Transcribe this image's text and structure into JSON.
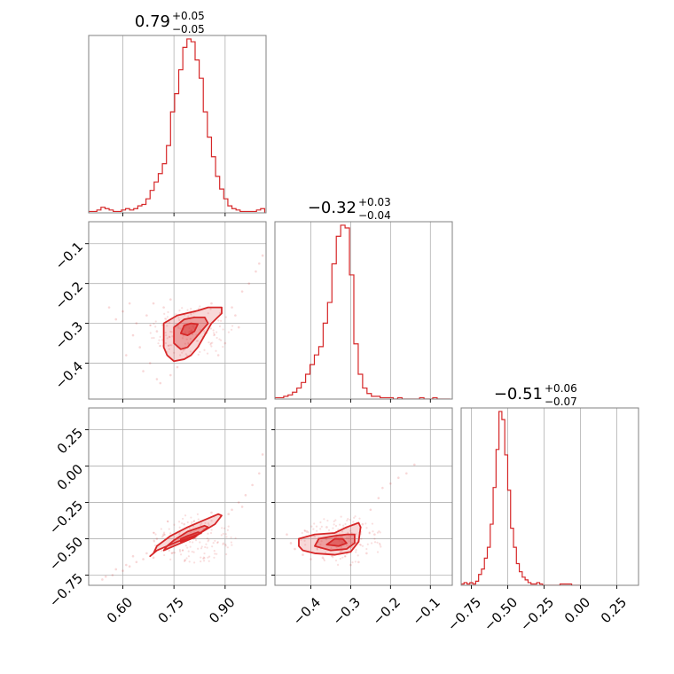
{
  "chart_data": {
    "type": "corner",
    "color": "#d62728",
    "grid": true,
    "panels": [
      {
        "name": "hist-p0",
        "kind": "hist",
        "row": 0,
        "col": 0,
        "title": {
          "value": "0.79",
          "plus": "+0.05",
          "minus": "−0.05"
        },
        "xlim": [
          0.5,
          1.02
        ],
        "x_ticks": [
          0.6,
          0.75,
          0.9
        ],
        "x_tick_labels": [],
        "bins": [
          0.5,
          0.512,
          0.524,
          0.536,
          0.548,
          0.56,
          0.572,
          0.584,
          0.596,
          0.608,
          0.62,
          0.632,
          0.644,
          0.656,
          0.668,
          0.68,
          0.692,
          0.704,
          0.716,
          0.728,
          0.74,
          0.752,
          0.764,
          0.776,
          0.788,
          0.8,
          0.812,
          0.824,
          0.836,
          0.848,
          0.86,
          0.872,
          0.884,
          0.896,
          0.908,
          0.92,
          0.932,
          0.944,
          0.956,
          0.968,
          0.98,
          0.992,
          1.004,
          1.016
        ],
        "counts": [
          1,
          1,
          2,
          4,
          3,
          2,
          1,
          1,
          2,
          3,
          2,
          3,
          5,
          6,
          10,
          16,
          22,
          28,
          35,
          48,
          72,
          85,
          102,
          118,
          124,
          122,
          109,
          96,
          72,
          54,
          40,
          26,
          17,
          10,
          5,
          3,
          2,
          1,
          1,
          1,
          1,
          2,
          3
        ]
      },
      {
        "name": "scatter-p1-p0",
        "kind": "2d",
        "row": 1,
        "col": 0,
        "xlim": [
          0.5,
          1.02
        ],
        "ylim": [
          -0.49,
          -0.045
        ],
        "x_ticks": [
          0.6,
          0.75,
          0.9
        ],
        "y_ticks": [
          -0.1,
          -0.2,
          -0.3,
          -0.4
        ],
        "x_tick_labels": [],
        "y_tick_labels": [
          "−0.1",
          "−0.2",
          "−0.3",
          "−0.4"
        ],
        "center": [
          0.8,
          -0.32
        ],
        "contours": [
          {
            "level": "outer",
            "points": [
              [
                0.72,
                -0.36
              ],
              [
                0.72,
                -0.3
              ],
              [
                0.76,
                -0.28
              ],
              [
                0.82,
                -0.268
              ],
              [
                0.85,
                -0.26
              ],
              [
                0.89,
                -0.26
              ],
              [
                0.89,
                -0.275
              ],
              [
                0.86,
                -0.3
              ],
              [
                0.84,
                -0.33
              ],
              [
                0.82,
                -0.36
              ],
              [
                0.8,
                -0.38
              ],
              [
                0.78,
                -0.39
              ],
              [
                0.75,
                -0.395
              ],
              [
                0.73,
                -0.38
              ]
            ]
          },
          {
            "level": "mid",
            "points": [
              [
                0.75,
                -0.35
              ],
              [
                0.75,
                -0.31
              ],
              [
                0.78,
                -0.29
              ],
              [
                0.81,
                -0.285
              ],
              [
                0.84,
                -0.285
              ],
              [
                0.85,
                -0.3
              ],
              [
                0.82,
                -0.33
              ],
              [
                0.79,
                -0.36
              ],
              [
                0.77,
                -0.365
              ]
            ]
          },
          {
            "level": "inner",
            "points": [
              [
                0.77,
                -0.325
              ],
              [
                0.78,
                -0.305
              ],
              [
                0.8,
                -0.3
              ],
              [
                0.82,
                -0.302
              ],
              [
                0.81,
                -0.32
              ],
              [
                0.79,
                -0.33
              ]
            ]
          }
        ],
        "scatter": [
          [
            0.62,
            -0.25
          ],
          [
            0.6,
            -0.27
          ],
          [
            0.56,
            -0.26
          ],
          [
            0.58,
            -0.29
          ],
          [
            0.64,
            -0.3
          ],
          [
            0.67,
            -0.28
          ],
          [
            0.65,
            -0.36
          ],
          [
            0.68,
            -0.4
          ],
          [
            0.66,
            -0.42
          ],
          [
            0.7,
            -0.44
          ],
          [
            0.69,
            -0.25
          ],
          [
            0.71,
            -0.45
          ],
          [
            0.74,
            -0.43
          ],
          [
            0.76,
            -0.41
          ],
          [
            0.92,
            -0.26
          ],
          [
            0.95,
            -0.22
          ],
          [
            0.97,
            -0.2
          ],
          [
            0.99,
            -0.17
          ],
          [
            1.0,
            -0.15
          ],
          [
            1.01,
            -0.13
          ],
          [
            0.94,
            -0.31
          ],
          [
            0.9,
            -0.35
          ],
          [
            0.88,
            -0.38
          ],
          [
            0.63,
            -0.33
          ],
          [
            0.61,
            -0.38
          ],
          [
            0.72,
            -0.26
          ],
          [
            0.74,
            -0.24
          ],
          [
            0.7,
            -0.32
          ],
          [
            0.86,
            -0.25
          ],
          [
            0.93,
            -0.28
          ]
        ]
      },
      {
        "name": "hist-p1",
        "kind": "hist",
        "row": 1,
        "col": 1,
        "title": {
          "value": "−0.32",
          "plus": "+0.03",
          "minus": "−0.04"
        },
        "xlim": [
          -0.49,
          -0.045
        ],
        "x_ticks": [
          -0.4,
          -0.3,
          -0.2,
          -0.1
        ],
        "x_tick_labels": [],
        "bins": [
          -0.49,
          -0.479,
          -0.468,
          -0.457,
          -0.446,
          -0.435,
          -0.424,
          -0.413,
          -0.402,
          -0.391,
          -0.38,
          -0.369,
          -0.358,
          -0.347,
          -0.336,
          -0.325,
          -0.314,
          -0.303,
          -0.292,
          -0.281,
          -0.27,
          -0.259,
          -0.248,
          -0.237,
          -0.226,
          -0.215,
          -0.204,
          -0.193,
          -0.182,
          -0.171,
          -0.16,
          -0.149,
          -0.138,
          -0.127,
          -0.116,
          -0.105,
          -0.094,
          -0.083,
          -0.072,
          -0.061,
          -0.05
        ],
        "counts": [
          1,
          1,
          2,
          3,
          5,
          8,
          12,
          18,
          25,
          32,
          38,
          55,
          70,
          98,
          118,
          126,
          124,
          90,
          40,
          18,
          8,
          4,
          2,
          2,
          1,
          1,
          1,
          0,
          1,
          0,
          0,
          0,
          0,
          1,
          0,
          0,
          1,
          0,
          0,
          0
        ]
      },
      {
        "name": "scatter-p2-p0",
        "kind": "2d",
        "row": 2,
        "col": 0,
        "xlim": [
          0.5,
          1.02
        ],
        "ylim": [
          -0.82,
          0.4
        ],
        "x_ticks": [
          0.6,
          0.75,
          0.9
        ],
        "y_ticks": [
          0.25,
          0.0,
          -0.25,
          -0.5,
          -0.75
        ],
        "x_tick_labels": [
          "0.60",
          "0.75",
          "0.90"
        ],
        "y_tick_labels": [
          "0.25",
          "0.00",
          "−0.25",
          "−0.50",
          "−0.75"
        ],
        "center": [
          0.81,
          -0.5
        ],
        "contours": [
          {
            "level": "outer",
            "points": [
              [
                0.68,
                -0.62
              ],
              [
                0.7,
                -0.58
              ],
              [
                0.76,
                -0.52
              ],
              [
                0.82,
                -0.47
              ],
              [
                0.87,
                -0.4
              ],
              [
                0.89,
                -0.34
              ],
              [
                0.88,
                -0.33
              ],
              [
                0.84,
                -0.37
              ],
              [
                0.79,
                -0.42
              ],
              [
                0.74,
                -0.48
              ],
              [
                0.7,
                -0.55
              ],
              [
                0.69,
                -0.6
              ]
            ]
          },
          {
            "level": "mid",
            "points": [
              [
                0.72,
                -0.58
              ],
              [
                0.76,
                -0.54
              ],
              [
                0.81,
                -0.49
              ],
              [
                0.85,
                -0.42
              ],
              [
                0.84,
                -0.41
              ],
              [
                0.79,
                -0.45
              ],
              [
                0.75,
                -0.51
              ],
              [
                0.73,
                -0.55
              ]
            ]
          },
          {
            "level": "inner",
            "points": [
              [
                0.77,
                -0.52
              ],
              [
                0.8,
                -0.495
              ],
              [
                0.83,
                -0.46
              ],
              [
                0.82,
                -0.455
              ],
              [
                0.79,
                -0.48
              ],
              [
                0.77,
                -0.5
              ]
            ]
          }
        ],
        "scatter": [
          [
            0.54,
            -0.78
          ],
          [
            0.57,
            -0.75
          ],
          [
            0.6,
            -0.72
          ],
          [
            0.62,
            -0.69
          ],
          [
            0.64,
            -0.66
          ],
          [
            0.66,
            -0.64
          ],
          [
            0.63,
            -0.62
          ],
          [
            0.67,
            -0.6
          ],
          [
            0.69,
            -0.63
          ],
          [
            0.92,
            -0.3
          ],
          [
            0.94,
            -0.25
          ],
          [
            0.96,
            -0.2
          ],
          [
            0.98,
            -0.13
          ],
          [
            1.0,
            -0.05
          ],
          [
            1.01,
            0.08
          ],
          [
            0.95,
            -0.28
          ],
          [
            0.91,
            -0.33
          ],
          [
            0.86,
            -0.32
          ],
          [
            0.72,
            -0.47
          ],
          [
            0.7,
            -0.5
          ],
          [
            0.78,
            -0.4
          ],
          [
            0.61,
            -0.68
          ],
          [
            0.58,
            -0.71
          ],
          [
            0.55,
            -0.76
          ]
        ]
      },
      {
        "name": "scatter-p2-p1",
        "kind": "2d",
        "row": 2,
        "col": 1,
        "xlim": [
          -0.49,
          -0.045
        ],
        "ylim": [
          -0.82,
          0.4
        ],
        "x_ticks": [
          -0.4,
          -0.3,
          -0.2,
          -0.1
        ],
        "y_ticks": [
          0.25,
          0.0,
          -0.25,
          -0.5,
          -0.75
        ],
        "x_tick_labels": [
          "−0.4",
          "−0.3",
          "−0.2",
          "−0.1"
        ],
        "y_tick_labels": [],
        "center": [
          -0.32,
          -0.51
        ],
        "contours": [
          {
            "level": "outer",
            "points": [
              [
                -0.43,
                -0.55
              ],
              [
                -0.43,
                -0.5
              ],
              [
                -0.39,
                -0.47
              ],
              [
                -0.34,
                -0.46
              ],
              [
                -0.31,
                -0.42
              ],
              [
                -0.28,
                -0.39
              ],
              [
                -0.275,
                -0.42
              ],
              [
                -0.28,
                -0.52
              ],
              [
                -0.3,
                -0.59
              ],
              [
                -0.34,
                -0.61
              ],
              [
                -0.39,
                -0.6
              ],
              [
                -0.42,
                -0.58
              ]
            ]
          },
          {
            "level": "mid",
            "points": [
              [
                -0.39,
                -0.55
              ],
              [
                -0.38,
                -0.5
              ],
              [
                -0.34,
                -0.48
              ],
              [
                -0.31,
                -0.47
              ],
              [
                -0.29,
                -0.47
              ],
              [
                -0.29,
                -0.53
              ],
              [
                -0.31,
                -0.57
              ],
              [
                -0.35,
                -0.58
              ]
            ]
          },
          {
            "level": "inner",
            "points": [
              [
                -0.36,
                -0.54
              ],
              [
                -0.34,
                -0.5
              ],
              [
                -0.32,
                -0.5
              ],
              [
                -0.31,
                -0.53
              ],
              [
                -0.33,
                -0.55
              ]
            ]
          }
        ],
        "scatter": [
          [
            -0.46,
            -0.47
          ],
          [
            -0.45,
            -0.53
          ],
          [
            -0.44,
            -0.57
          ],
          [
            -0.22,
            -0.15
          ],
          [
            -0.2,
            -0.12
          ],
          [
            -0.18,
            -0.08
          ],
          [
            -0.16,
            -0.05
          ],
          [
            -0.14,
            0.01
          ],
          [
            -0.25,
            -0.3
          ],
          [
            -0.23,
            -0.22
          ],
          [
            -0.27,
            -0.4
          ],
          [
            -0.26,
            -0.6
          ],
          [
            -0.28,
            -0.66
          ],
          [
            -0.3,
            -0.68
          ],
          [
            -0.37,
            -0.63
          ],
          [
            -0.4,
            -0.64
          ],
          [
            -0.41,
            -0.45
          ],
          [
            -0.36,
            -0.42
          ],
          [
            -0.42,
            -0.61
          ],
          [
            -0.24,
            -0.47
          ]
        ]
      },
      {
        "name": "hist-p2",
        "kind": "hist",
        "row": 2,
        "col": 2,
        "title": {
          "value": "−0.51",
          "plus": "+0.06",
          "minus": "−0.07"
        },
        "xlim": [
          -0.82,
          0.4
        ],
        "x_ticks": [
          -0.75,
          -0.5,
          -0.25,
          0.0,
          0.25
        ],
        "x_tick_labels": [
          "−0.75",
          "−0.50",
          "−0.25",
          "0.00",
          "0.25"
        ],
        "bins": [
          -0.82,
          -0.8,
          -0.78,
          -0.76,
          -0.74,
          -0.72,
          -0.7,
          -0.68,
          -0.66,
          -0.64,
          -0.62,
          -0.6,
          -0.58,
          -0.56,
          -0.54,
          -0.52,
          -0.5,
          -0.48,
          -0.46,
          -0.44,
          -0.42,
          -0.4,
          -0.38,
          -0.36,
          -0.34,
          -0.32,
          -0.3,
          -0.28,
          -0.26,
          -0.24,
          -0.22,
          -0.2,
          -0.18,
          -0.16,
          -0.14,
          -0.12,
          -0.1,
          -0.08,
          -0.06,
          -0.04,
          -0.02,
          0.0
        ],
        "counts": [
          1,
          2,
          1,
          2,
          1,
          3,
          8,
          12,
          20,
          28,
          45,
          72,
          100,
          128,
          122,
          96,
          70,
          42,
          28,
          16,
          10,
          6,
          4,
          2,
          1,
          1,
          2,
          1,
          0,
          0,
          0,
          0,
          0,
          0,
          1,
          1,
          1,
          1,
          0,
          0,
          0
        ]
      }
    ]
  }
}
